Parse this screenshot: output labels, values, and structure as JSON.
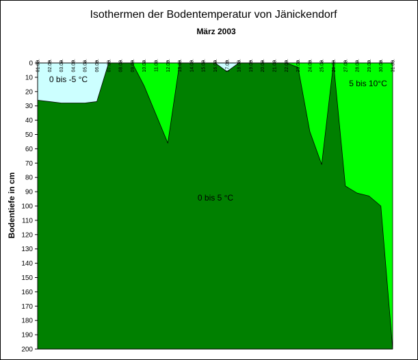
{
  "chart_data": {
    "type": "area",
    "title": "Isothermen der Bodentemperatur von Jänickendorf",
    "subtitle": "März 2003",
    "xlabel": "",
    "ylabel": "Bodentiefe in cm",
    "categories": [
      "01.03.",
      "02.03.",
      "03.03.",
      "04.03.",
      "05.03.",
      "06.03.",
      "07.03.",
      "08.03.",
      "09.03.",
      "10.03.",
      "11.03.",
      "12.03.",
      "13.03.",
      "14.03.",
      "15.03.",
      "16.03.",
      "17.03.",
      "18.03.",
      "19.03.",
      "20.03.",
      "21.03.",
      "22.03.",
      "23.03.",
      "24.03.",
      "25.03.",
      "26.03.",
      "27.03.",
      "28.03.",
      "29.03.",
      "30.03.",
      "31.03."
    ],
    "yticks": [
      0,
      10,
      20,
      30,
      40,
      50,
      60,
      70,
      80,
      90,
      100,
      110,
      120,
      130,
      140,
      150,
      160,
      170,
      180,
      190,
      200
    ],
    "ylim": [
      0,
      200
    ],
    "y_inverted": true,
    "grid": false,
    "series": [
      {
        "name": "0 bis -5 °C",
        "color": "#ccffff",
        "values": [
          26,
          27,
          28,
          28,
          28,
          27,
          0,
          0,
          0,
          0,
          0,
          0,
          0,
          0,
          0,
          0,
          6,
          0,
          0,
          0,
          0,
          0,
          0,
          0,
          0,
          0,
          0,
          0,
          0,
          0,
          0
        ]
      },
      {
        "name": "5 bis 10°C",
        "color": "#00ff00",
        "values": [
          0,
          0,
          0,
          0,
          0,
          0,
          0,
          0,
          0,
          16,
          36,
          56,
          0,
          0,
          0,
          0,
          0,
          0,
          0,
          0,
          0,
          0,
          3,
          48,
          71,
          0,
          86,
          91,
          93,
          100,
          200
        ]
      }
    ],
    "base_region": {
      "name": "0 bis 5 °C",
      "color": "#008000"
    },
    "annotations": [
      "0 bis -5 °C",
      "0 bis 5 °C",
      "5 bis 10°C"
    ]
  }
}
